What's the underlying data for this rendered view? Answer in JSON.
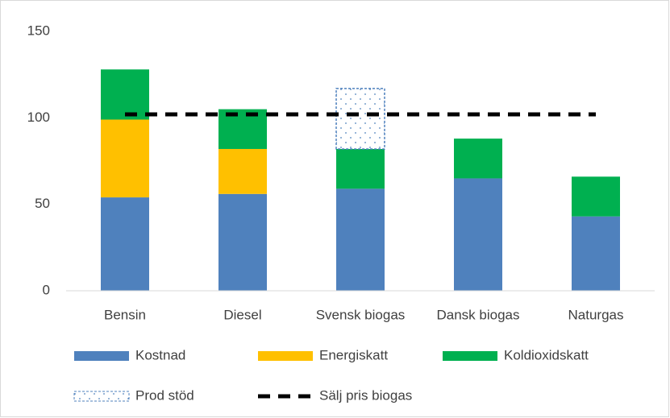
{
  "chart_data": {
    "type": "bar",
    "stacked": true,
    "categories": [
      "Bensin",
      "Diesel",
      "Svensk biogas",
      "Dansk biogas",
      "Naturgas"
    ],
    "series": [
      {
        "name": "Kostnad",
        "color": "#4f81bd",
        "values": [
          54,
          56,
          59,
          65,
          43
        ]
      },
      {
        "name": "Energiskatt",
        "color": "#ffc000",
        "values": [
          45,
          26,
          0,
          0,
          0
        ]
      },
      {
        "name": "Koldioxidskatt",
        "color": "#00b050",
        "values": [
          29,
          23,
          23,
          23,
          23
        ]
      },
      {
        "name": "Prod stöd",
        "color": "#4f81bd",
        "fill": "dots",
        "values": [
          0,
          0,
          35,
          0,
          0
        ]
      },
      {
        "name": "Sälj pris biogas",
        "color": "#000000",
        "type": "line",
        "dashed": true,
        "values": [
          102,
          102,
          102,
          102,
          102
        ]
      }
    ],
    "ylim": [
      0,
      150
    ],
    "yticks": [
      0,
      50,
      100,
      150
    ],
    "grid": false,
    "legend": "bottom"
  }
}
